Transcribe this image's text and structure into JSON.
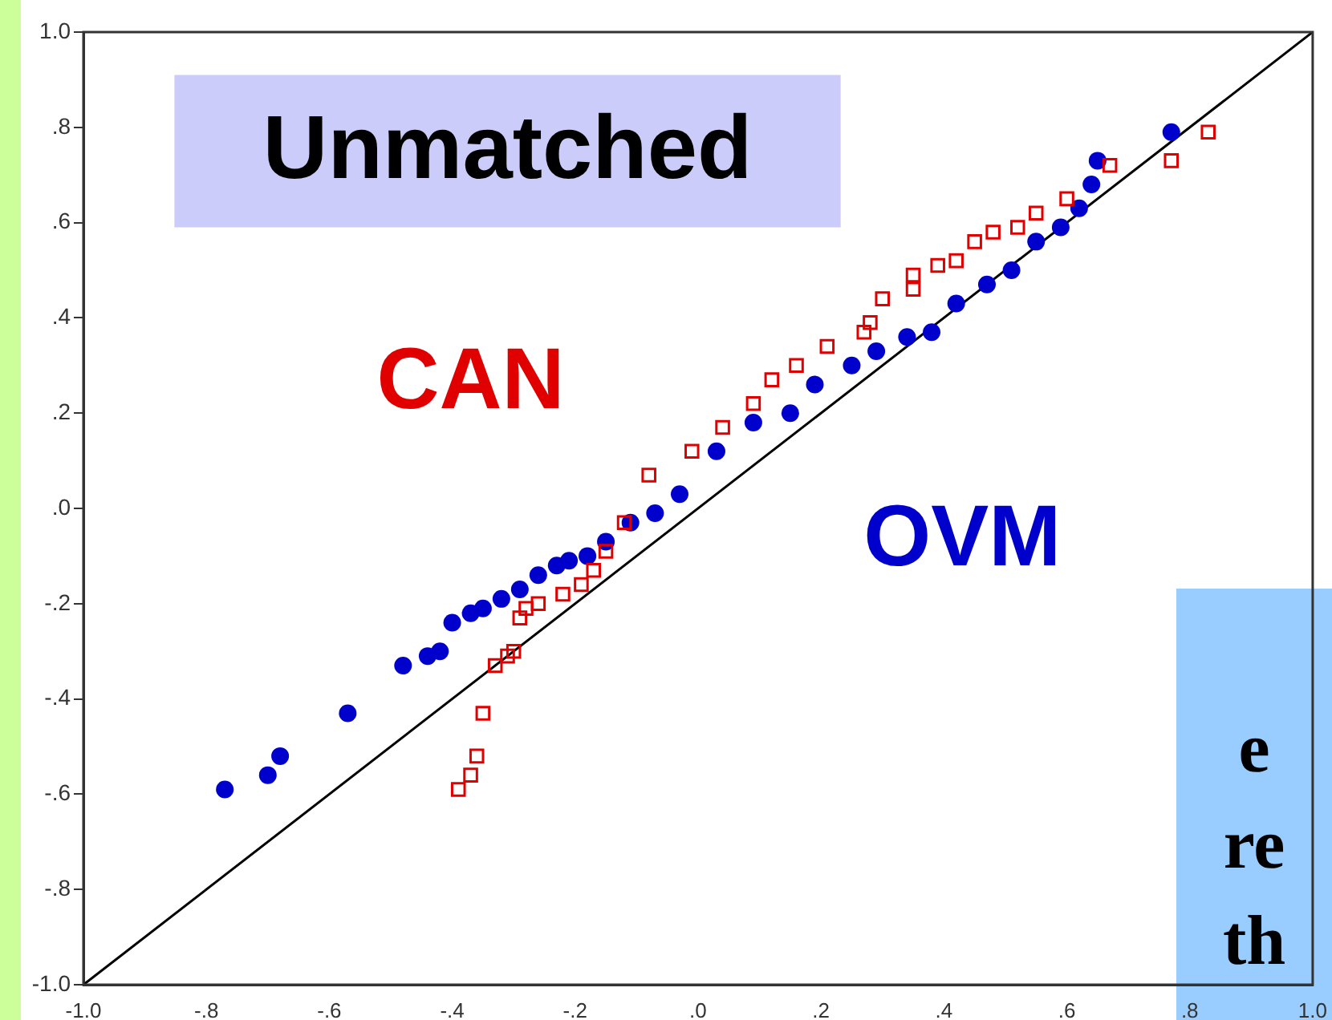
{
  "chart_data": {
    "type": "scatter",
    "title": "Unmatched",
    "xlim": [
      -1,
      1
    ],
    "ylim": [
      -1,
      1
    ],
    "xticks": [
      {
        "value": -1,
        "label": "-1.0"
      },
      {
        "value": -0.8,
        "label": "-.8"
      },
      {
        "value": -0.6,
        "label": "-.6"
      },
      {
        "value": -0.4,
        "label": "-.4"
      },
      {
        "value": -0.2,
        "label": "-.2"
      },
      {
        "value": 0,
        "label": ".0"
      },
      {
        "value": 0.2,
        "label": ".2"
      },
      {
        "value": 0.4,
        "label": ".4"
      },
      {
        "value": 0.6,
        "label": ".6"
      },
      {
        "value": 0.8,
        "label": ".8"
      },
      {
        "value": 1,
        "label": "1.0"
      }
    ],
    "yticks": [
      {
        "value": 1,
        "label": "1.0"
      },
      {
        "value": 0.8,
        "label": ".8"
      },
      {
        "value": 0.6,
        "label": ".6"
      },
      {
        "value": 0.4,
        "label": ".4"
      },
      {
        "value": 0.2,
        "label": ".2"
      },
      {
        "value": 0,
        "label": ".0"
      },
      {
        "value": -0.2,
        "label": "-.2"
      },
      {
        "value": -0.4,
        "label": "-.4"
      },
      {
        "value": -0.6,
        "label": "-.6"
      },
      {
        "value": -0.8,
        "label": "-.8"
      },
      {
        "value": -1,
        "label": "-1.0"
      }
    ],
    "grid": false,
    "legend": false,
    "annotations": [
      "e",
      "re",
      "th"
    ],
    "series": [
      {
        "name": "OVM",
        "color": "#0000cc",
        "marker": "circle",
        "x": [
          -0.77,
          -0.7,
          -0.68,
          -0.57,
          -0.48,
          -0.44,
          -0.42,
          -0.4,
          -0.37,
          -0.35,
          -0.32,
          -0.29,
          -0.26,
          -0.23,
          -0.21,
          -0.18,
          -0.15,
          -0.11,
          -0.07,
          -0.03,
          0.03,
          0.09,
          0.15,
          0.19,
          0.25,
          0.29,
          0.34,
          0.38,
          0.42,
          0.47,
          0.51,
          0.55,
          0.59,
          0.62,
          0.64,
          0.65,
          0.77
        ],
        "values": [
          -0.59,
          -0.56,
          -0.52,
          -0.43,
          -0.33,
          -0.31,
          -0.3,
          -0.24,
          -0.22,
          -0.21,
          -0.19,
          -0.17,
          -0.14,
          -0.12,
          -0.11,
          -0.1,
          -0.07,
          -0.03,
          -0.01,
          0.03,
          0.12,
          0.18,
          0.2,
          0.26,
          0.3,
          0.33,
          0.36,
          0.37,
          0.43,
          0.47,
          0.5,
          0.56,
          0.59,
          0.63,
          0.68,
          0.73,
          0.79
        ]
      },
      {
        "name": "CAN",
        "color": "#e00000",
        "marker": "square",
        "x": [
          -0.39,
          -0.37,
          -0.36,
          -0.35,
          -0.33,
          -0.31,
          -0.3,
          -0.29,
          -0.28,
          -0.26,
          -0.22,
          -0.19,
          -0.17,
          -0.15,
          -0.12,
          -0.08,
          -0.01,
          0.04,
          0.09,
          0.12,
          0.16,
          0.21,
          0.27,
          0.28,
          0.3,
          0.35,
          0.35,
          0.39,
          0.42,
          0.45,
          0.48,
          0.52,
          0.55,
          0.6,
          0.67,
          0.77,
          0.83
        ],
        "values": [
          -0.59,
          -0.56,
          -0.52,
          -0.43,
          -0.33,
          -0.31,
          -0.3,
          -0.23,
          -0.21,
          -0.2,
          -0.18,
          -0.16,
          -0.13,
          -0.09,
          -0.03,
          0.07,
          0.12,
          0.17,
          0.22,
          0.27,
          0.3,
          0.34,
          0.37,
          0.39,
          0.44,
          0.46,
          0.49,
          0.51,
          0.52,
          0.56,
          0.58,
          0.59,
          0.62,
          0.65,
          0.72,
          0.73,
          0.79
        ]
      },
      {
        "type": "line",
        "color": "#000000",
        "marker": "none",
        "x": [
          -1,
          1
        ],
        "values": [
          -1,
          1
        ]
      }
    ]
  }
}
